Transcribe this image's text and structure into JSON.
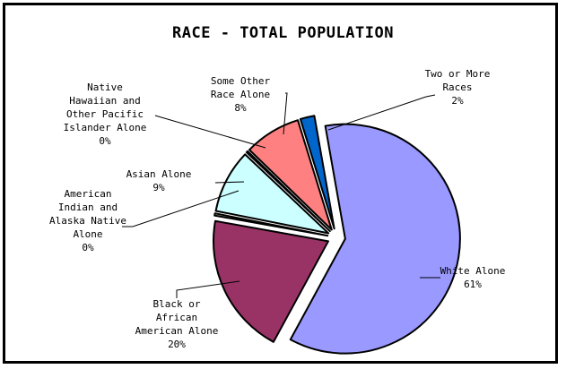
{
  "chart_data": {
    "type": "pie",
    "title": "RACE - TOTAL POPULATION",
    "exploded": true,
    "slices": [
      {
        "label": [
          "White Alone"
        ],
        "percent_label": "61%",
        "value": 61,
        "color": "#9999ff"
      },
      {
        "label": [
          "Black or",
          "African",
          "American Alone"
        ],
        "percent_label": "20%",
        "value": 20,
        "color": "#993366"
      },
      {
        "label": [
          "American",
          "Indian and",
          "Alaska Native",
          "Alone"
        ],
        "percent_label": "0%",
        "value": 0.3,
        "color": "#ffffcc"
      },
      {
        "label": [
          "Asian Alone"
        ],
        "percent_label": "9%",
        "value": 9,
        "color": "#ccffff"
      },
      {
        "label": [
          "Native",
          "Hawaiian and",
          "Other Pacific",
          "Islander Alone"
        ],
        "percent_label": "0%",
        "value": 0.2,
        "color": "#660066"
      },
      {
        "label": [
          "Some Other",
          "Race Alone"
        ],
        "percent_label": "8%",
        "value": 8,
        "color": "#ff8080"
      },
      {
        "label": [
          "Two or More",
          "Races"
        ],
        "percent_label": "2%",
        "value": 2,
        "color": "#0066cc"
      }
    ]
  }
}
